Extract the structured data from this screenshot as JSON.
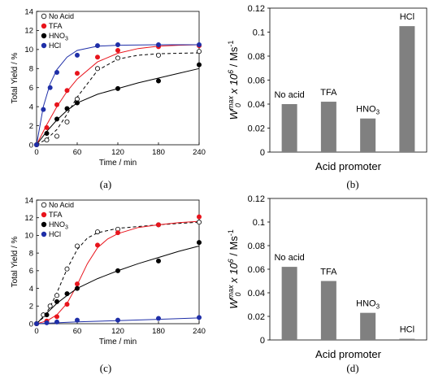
{
  "chart_data": [
    {
      "panel": "(a)",
      "type": "scatter",
      "xlabel": "Time / min",
      "ylabel": "Total Yield / %",
      "xlim": [
        0,
        240
      ],
      "ylim": [
        0,
        14
      ],
      "xticks": [
        0,
        60,
        120,
        180,
        240
      ],
      "yticks": [
        0,
        2,
        4,
        6,
        8,
        10,
        12,
        14
      ],
      "legend_position": "top-left",
      "series": [
        {
          "name": "No Acid",
          "marker": "open",
          "color": "#000000",
          "line": "dashed",
          "x": [
            0,
            15,
            30,
            45,
            60,
            90,
            120,
            180,
            240
          ],
          "y": [
            0,
            0.5,
            0.9,
            2.4,
            4.8,
            8.0,
            9.1,
            9.4,
            9.8
          ],
          "fit_x": [
            0,
            15,
            30,
            45,
            60,
            90,
            120,
            150,
            180,
            210,
            240
          ],
          "fit_y": [
            0,
            0.6,
            1.6,
            3.2,
            5.0,
            7.8,
            9.0,
            9.4,
            9.55,
            9.6,
            9.65
          ]
        },
        {
          "name": "TFA",
          "marker": "filled",
          "color": "#e8141c",
          "line": "solid",
          "x": [
            0,
            15,
            30,
            45,
            60,
            90,
            120,
            180,
            240
          ],
          "y": [
            0,
            1.8,
            4.2,
            5.7,
            7.5,
            9.2,
            9.9,
            10.3,
            10.4
          ],
          "fit_x": [
            0,
            15,
            30,
            45,
            60,
            90,
            120,
            150,
            180,
            210,
            240
          ],
          "fit_y": [
            0,
            2.1,
            4.0,
            5.6,
            6.9,
            8.7,
            9.6,
            10.1,
            10.35,
            10.45,
            10.5
          ]
        },
        {
          "name": "HNO3",
          "label_main": "HNO",
          "label_sub": "3",
          "marker": "filled",
          "color": "#000000",
          "line": "solid",
          "x": [
            0,
            15,
            30,
            45,
            60,
            120,
            180,
            240
          ],
          "y": [
            0,
            1.2,
            2.7,
            3.8,
            4.4,
            5.9,
            6.7,
            8.4
          ],
          "fit_x": [
            0,
            15,
            30,
            45,
            60,
            90,
            120,
            150,
            180,
            210,
            240
          ],
          "fit_y": [
            0,
            1.4,
            2.6,
            3.6,
            4.4,
            5.3,
            5.9,
            6.5,
            7.0,
            7.5,
            8.0
          ]
        },
        {
          "name": "HCl",
          "marker": "filled",
          "color": "#1f2fa8",
          "line": "solid",
          "x": [
            0,
            10,
            20,
            30,
            60,
            90,
            120,
            180,
            240
          ],
          "y": [
            0,
            3.7,
            6.0,
            7.6,
            9.4,
            10.4,
            10.5,
            10.5,
            10.5
          ],
          "fit_x": [
            0,
            10,
            20,
            30,
            45,
            60,
            90,
            120,
            180,
            240
          ],
          "fit_y": [
            0,
            4.0,
            6.4,
            7.9,
            9.2,
            9.9,
            10.35,
            10.45,
            10.5,
            10.5
          ]
        }
      ]
    },
    {
      "panel": "(b)",
      "type": "bar",
      "xlabel": "Acid promoter",
      "ylabel_main": "W",
      "ylabel_sub": "0",
      "ylabel_sup": "max",
      "ylabel_rest": " x 10",
      "ylabel_sup2": "6",
      "ylabel_end": " / Ms",
      "ylabel_sup3": "-1",
      "ylim": [
        0,
        0.12
      ],
      "yticks": [
        0,
        0.02,
        0.04,
        0.06,
        0.08,
        0.1,
        0.12
      ],
      "ytick_labels": [
        "0",
        "0.02",
        "0.04",
        "0.06",
        "0.08",
        "0.1",
        "0.12"
      ],
      "bar_color": "#808080",
      "categories": [
        "No acid",
        "TFA",
        "HNO3",
        "HCl"
      ],
      "category_labels": [
        {
          "main": "No acid",
          "sub": ""
        },
        {
          "main": "TFA",
          "sub": ""
        },
        {
          "main": "HNO",
          "sub": "3"
        },
        {
          "main": "HCl",
          "sub": ""
        }
      ],
      "values": [
        0.04,
        0.042,
        0.028,
        0.105
      ]
    },
    {
      "panel": "(c)",
      "type": "scatter",
      "xlabel": "Time / min",
      "ylabel": "Total Yield / %",
      "xlim": [
        0,
        240
      ],
      "ylim": [
        0,
        14
      ],
      "xticks": [
        0,
        60,
        120,
        180,
        240
      ],
      "yticks": [
        0,
        2,
        4,
        6,
        8,
        10,
        12,
        14
      ],
      "legend_position": "top-left",
      "series": [
        {
          "name": "No Acid",
          "marker": "open",
          "color": "#000000",
          "line": "dashed",
          "x": [
            0,
            10,
            20,
            30,
            45,
            60,
            90,
            120,
            180,
            240
          ],
          "y": [
            0,
            1.0,
            2.0,
            3.2,
            6.2,
            8.8,
            10.4,
            10.7,
            11.2,
            11.5
          ],
          "fit_x": [
            0,
            10,
            20,
            30,
            45,
            60,
            75,
            90,
            120,
            180,
            240
          ],
          "fit_y": [
            0,
            0.7,
            1.9,
            3.5,
            6.2,
            8.4,
            9.7,
            10.3,
            10.8,
            11.2,
            11.5
          ]
        },
        {
          "name": "TFA",
          "marker": "filled",
          "color": "#e8141c",
          "line": "solid",
          "x": [
            0,
            15,
            30,
            45,
            60,
            90,
            120,
            180,
            240
          ],
          "y": [
            0,
            0.3,
            0.8,
            2.2,
            4.5,
            8.9,
            10.3,
            11.2,
            12.1
          ],
          "fit_x": [
            0,
            15,
            30,
            45,
            60,
            75,
            90,
            105,
            120,
            150,
            180,
            210,
            240
          ],
          "fit_y": [
            0,
            0.3,
            1.0,
            2.3,
            4.4,
            6.8,
            8.6,
            9.6,
            10.2,
            10.9,
            11.2,
            11.45,
            11.6
          ]
        },
        {
          "name": "HNO3",
          "label_main": "HNO",
          "label_sub": "3",
          "marker": "filled",
          "color": "#000000",
          "line": "solid",
          "x": [
            0,
            15,
            30,
            45,
            60,
            120,
            180,
            240
          ],
          "y": [
            0,
            1.0,
            2.5,
            3.4,
            4.0,
            6.0,
            7.1,
            9.2
          ],
          "fit_x": [
            0,
            15,
            30,
            45,
            60,
            90,
            120,
            150,
            180,
            210,
            240
          ],
          "fit_y": [
            0,
            1.2,
            2.3,
            3.2,
            4.0,
            5.1,
            6.0,
            6.8,
            7.5,
            8.2,
            8.8
          ]
        },
        {
          "name": "HCl",
          "marker": "filled",
          "color": "#1f2fa8",
          "line": "solid",
          "x": [
            0,
            15,
            30,
            60,
            120,
            180,
            240
          ],
          "y": [
            0,
            0.1,
            0.2,
            0.4,
            0.4,
            0.6,
            0.7
          ],
          "fit_x": [
            0,
            60,
            120,
            180,
            240
          ],
          "fit_y": [
            0,
            0.2,
            0.35,
            0.5,
            0.65
          ]
        }
      ]
    },
    {
      "panel": "(d)",
      "type": "bar",
      "xlabel": "Acid promoter",
      "ylabel_main": "W",
      "ylabel_sub": "0",
      "ylabel_sup": "max",
      "ylabel_rest": " x 10",
      "ylabel_sup2": "6",
      "ylabel_end": " / Ms",
      "ylabel_sup3": "-1",
      "ylim": [
        0,
        0.12
      ],
      "yticks": [
        0,
        0.02,
        0.04,
        0.06,
        0.08,
        0.1,
        0.12
      ],
      "ytick_labels": [
        "0",
        "0.02",
        "0.04",
        "0.06",
        "0.08",
        "0.1",
        "0.12"
      ],
      "bar_color": "#808080",
      "categories": [
        "No acid",
        "TFA",
        "HNO3",
        "HCl"
      ],
      "category_labels": [
        {
          "main": "No acid",
          "sub": ""
        },
        {
          "main": "TFA",
          "sub": ""
        },
        {
          "main": "HNO",
          "sub": "3"
        },
        {
          "main": "HCl",
          "sub": ""
        }
      ],
      "values": [
        0.062,
        0.05,
        0.023,
        0.001
      ]
    }
  ]
}
